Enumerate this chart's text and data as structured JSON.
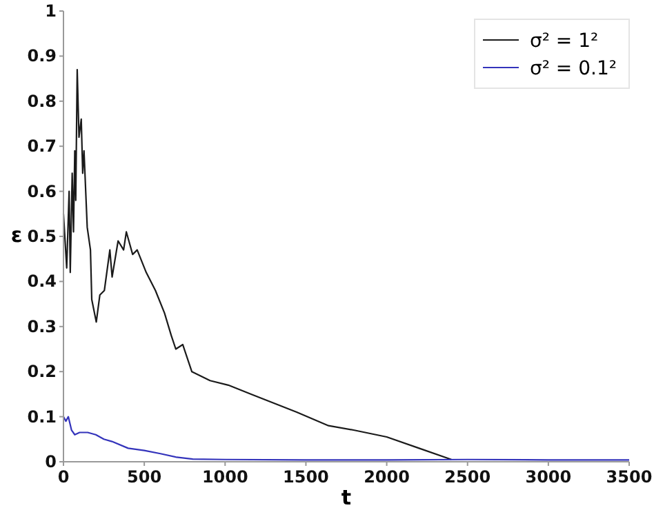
{
  "chart_data": {
    "type": "line",
    "xlabel": "t",
    "ylabel": "ε",
    "xlim": [
      0,
      3500
    ],
    "ylim": [
      0,
      1
    ],
    "xticks": [
      0,
      500,
      1000,
      1500,
      2000,
      2500,
      3000,
      3500
    ],
    "yticks": [
      0,
      0.1,
      0.2,
      0.3,
      0.4,
      0.5,
      0.6,
      0.7,
      0.8,
      0.9,
      1
    ],
    "grid": false,
    "legend": "top right",
    "marker": "none",
    "line_style": "solid",
    "series": [
      {
        "name": "σ² = 1²",
        "color": "#1a1a1a",
        "x": [
          0,
          20,
          35,
          42,
          54,
          62,
          70,
          76,
          85,
          96,
          110,
          119,
          127,
          147,
          167,
          175,
          203,
          225,
          253,
          287,
          301,
          338,
          372,
          389,
          428,
          456,
          512,
          569,
          625,
          667,
          695,
          738,
          794,
          907,
          1020,
          1161,
          1302,
          1443,
          1640,
          1800,
          2000,
          2200,
          2400
        ],
        "values": [
          0.55,
          0.43,
          0.6,
          0.42,
          0.64,
          0.51,
          0.69,
          0.58,
          0.87,
          0.72,
          0.76,
          0.64,
          0.69,
          0.52,
          0.47,
          0.36,
          0.31,
          0.37,
          0.38,
          0.47,
          0.41,
          0.49,
          0.47,
          0.51,
          0.46,
          0.47,
          0.42,
          0.38,
          0.33,
          0.28,
          0.25,
          0.26,
          0.2,
          0.18,
          0.17,
          0.15,
          0.13,
          0.11,
          0.08,
          0.07,
          0.055,
          0.03,
          0.005
        ]
      },
      {
        "name": "σ² = 0.1²",
        "color": "#3333bb",
        "x": [
          0,
          15,
          30,
          50,
          70,
          100,
          150,
          200,
          250,
          300,
          400,
          500,
          600,
          700,
          800,
          1000,
          1500,
          2000,
          2500,
          3000,
          3500
        ],
        "values": [
          0.1,
          0.09,
          0.1,
          0.07,
          0.06,
          0.065,
          0.065,
          0.06,
          0.05,
          0.045,
          0.03,
          0.025,
          0.018,
          0.01,
          0.006,
          0.005,
          0.004,
          0.004,
          0.005,
          0.004,
          0.004
        ]
      }
    ]
  }
}
